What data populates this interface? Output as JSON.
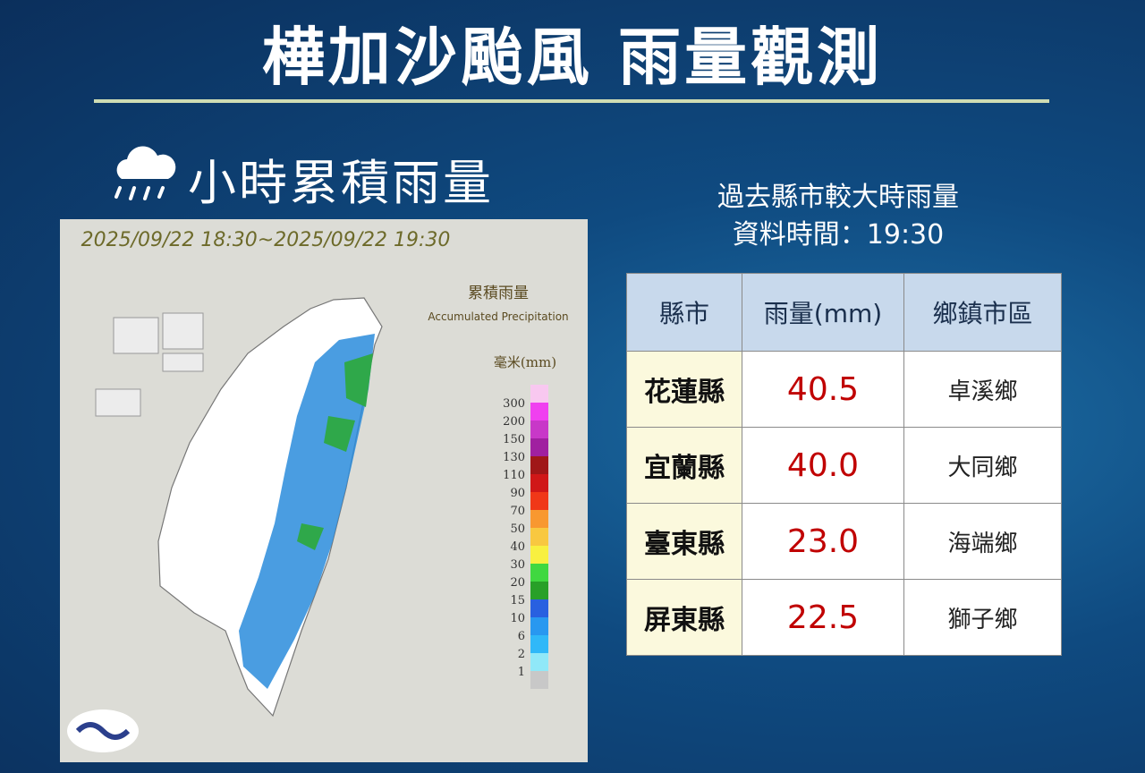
{
  "header": {
    "title": "樺加沙颱風 雨量觀測",
    "subtitle": "小時累積雨量"
  },
  "map": {
    "time_range": "2025/09/22 18:30~2025/09/22 19:30",
    "legend_title": "累積雨量",
    "legend_subtitle": "Accumulated Precipitation",
    "unit": "毫米(mm)",
    "legend_labels": [
      "300",
      "200",
      "150",
      "130",
      "110",
      "90",
      "70",
      "50",
      "40",
      "30",
      "20",
      "15",
      "10",
      "6",
      "2",
      "1"
    ]
  },
  "table": {
    "caption": [
      "過去縣市較大時雨量",
      "資料時間：19:30"
    ],
    "columns": [
      "縣市",
      "雨量(mm)",
      "鄉鎮市區"
    ],
    "rows": [
      [
        "花蓮縣",
        "40.5",
        "卓溪鄉"
      ],
      [
        "宜蘭縣",
        "40.0",
        "大同鄉"
      ],
      [
        "臺東縣",
        "23.0",
        "海端鄉"
      ],
      [
        "屏東縣",
        "22.5",
        "獅子鄉"
      ]
    ]
  }
}
